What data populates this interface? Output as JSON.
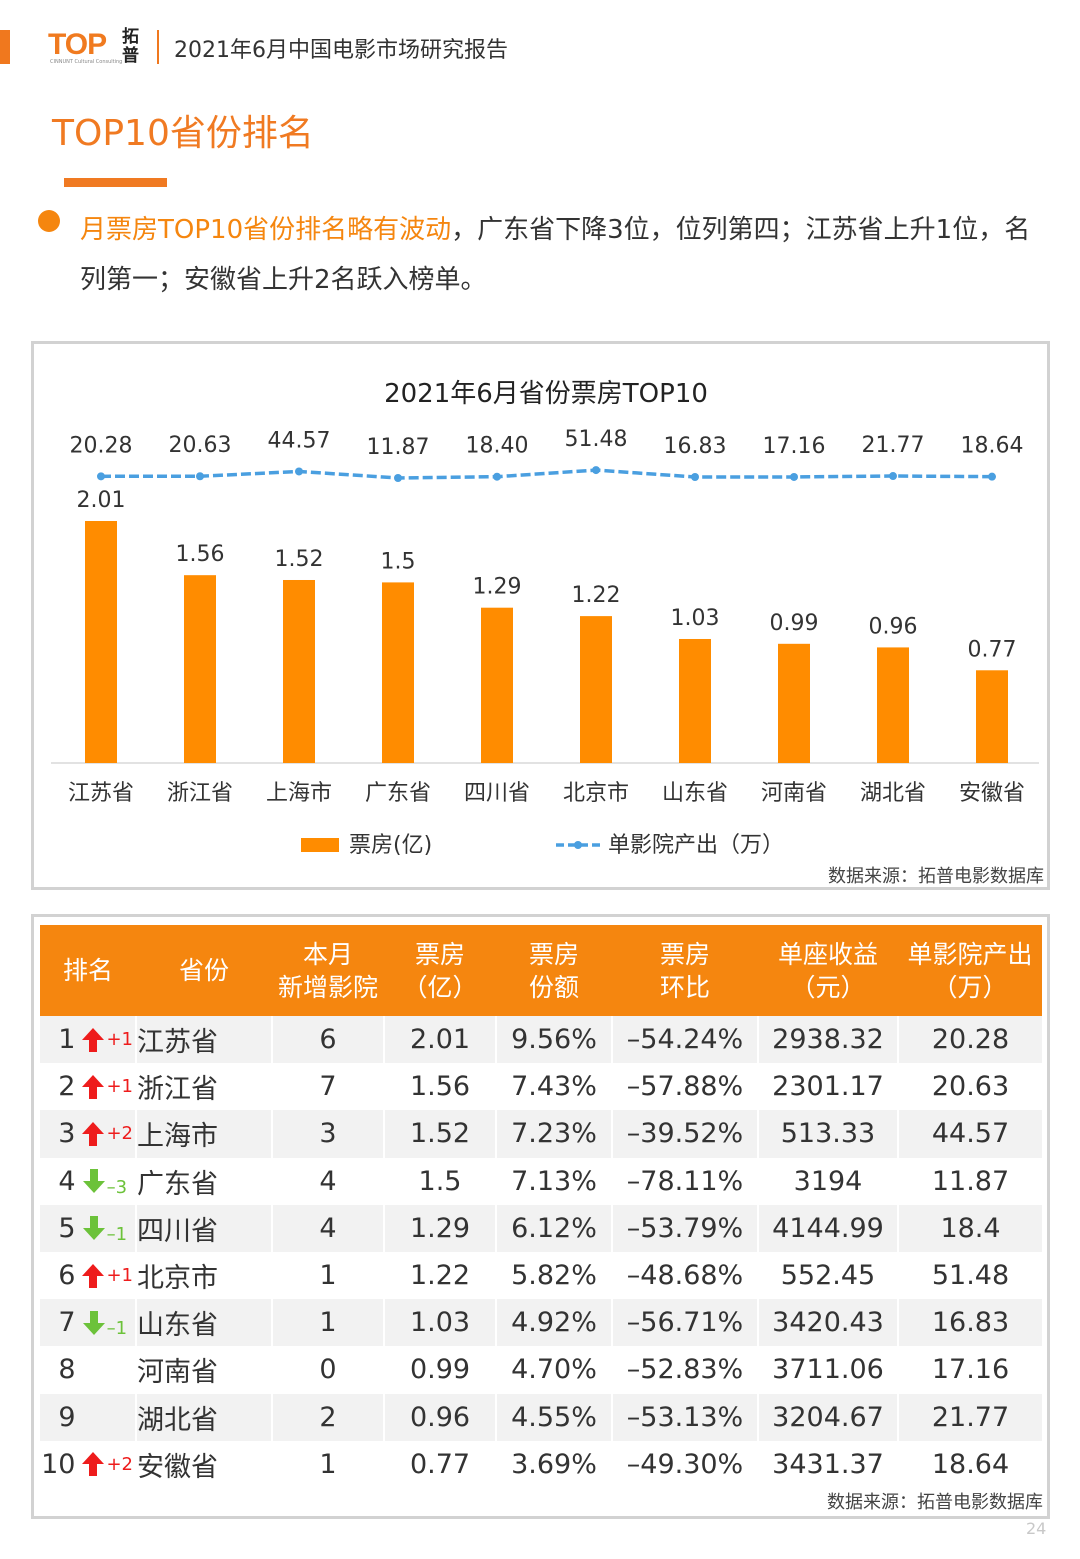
{
  "header": {
    "logo_text": "TOP",
    "logo_sub": "CINNUNT  Cultural Consulting",
    "logo_cn": "拓普",
    "report_title": "2021年6月中国电影市场研究报告"
  },
  "section": {
    "title": "TOP10省份排名",
    "summary_highlight": "月票房TOP10省份排名略有波动",
    "summary_rest": "，广东省下降3位，位列第四；江苏省上升1位，名列第一；安徽省上升2名跃入榜单。"
  },
  "chart_data": {
    "type": "bar",
    "title": "2021年6月省份票房TOP10",
    "categories": [
      "江苏省",
      "浙江省",
      "上海市",
      "广东省",
      "四川省",
      "北京市",
      "山东省",
      "河南省",
      "湖北省",
      "安徽省"
    ],
    "series": [
      {
        "name": "票房(亿)",
        "type": "bar",
        "color": "#ff8c00",
        "values": [
          2.01,
          1.56,
          1.52,
          1.5,
          1.29,
          1.22,
          1.03,
          0.99,
          0.96,
          0.77
        ],
        "labels": [
          "2.01",
          "1.56",
          "1.52",
          "1.5",
          "1.29",
          "1.22",
          "1.03",
          "0.99",
          "0.96",
          "0.77"
        ]
      },
      {
        "name": "单影院产出（万）",
        "type": "line",
        "style": "dashed",
        "color": "#4a9fe0",
        "values": [
          20.28,
          20.63,
          44.57,
          11.87,
          18.4,
          51.48,
          16.83,
          17.16,
          21.77,
          18.64
        ],
        "labels": [
          "20.28",
          "20.63",
          "44.57",
          "11.87",
          "18.40",
          "51.48",
          "16.83",
          "17.16",
          "21.77",
          "18.64"
        ]
      }
    ],
    "legend_position": "bottom",
    "grid": false,
    "source": "数据来源：拓普电影数据库"
  },
  "table": {
    "headers": [
      [
        "排名"
      ],
      [
        "省份"
      ],
      [
        "本月",
        "新增影院"
      ],
      [
        "票房",
        "（亿）"
      ],
      [
        "票房",
        "份额"
      ],
      [
        "票房",
        "环比"
      ],
      [
        "单座收益",
        "（元）"
      ],
      [
        "单影院产出",
        "（万）"
      ]
    ],
    "rows": [
      {
        "rank": "1",
        "dir": "up",
        "change": "+1",
        "province": "江苏省",
        "new_cinemas": "6",
        "box_office": "2.01",
        "share": "9.56%",
        "mom": "–54.24%",
        "per_seat": "2938.32",
        "per_cinema": "20.28"
      },
      {
        "rank": "2",
        "dir": "up",
        "change": "+1",
        "province": "浙江省",
        "new_cinemas": "7",
        "box_office": "1.56",
        "share": "7.43%",
        "mom": "–57.88%",
        "per_seat": "2301.17",
        "per_cinema": "20.63"
      },
      {
        "rank": "3",
        "dir": "up",
        "change": "+2",
        "province": "上海市",
        "new_cinemas": "3",
        "box_office": "1.52",
        "share": "7.23%",
        "mom": "–39.52%",
        "per_seat": "513.33",
        "per_cinema": "44.57"
      },
      {
        "rank": "4",
        "dir": "down",
        "change": "–3",
        "province": "广东省",
        "new_cinemas": "4",
        "box_office": "1.5",
        "share": "7.13%",
        "mom": "–78.11%",
        "per_seat": "3194",
        "per_cinema": "11.87"
      },
      {
        "rank": "5",
        "dir": "down",
        "change": "–1",
        "province": "四川省",
        "new_cinemas": "4",
        "box_office": "1.29",
        "share": "6.12%",
        "mom": "–53.79%",
        "per_seat": "4144.99",
        "per_cinema": "18.4"
      },
      {
        "rank": "6",
        "dir": "up",
        "change": "+1",
        "province": "北京市",
        "new_cinemas": "1",
        "box_office": "1.22",
        "share": "5.82%",
        "mom": "–48.68%",
        "per_seat": "552.45",
        "per_cinema": "51.48"
      },
      {
        "rank": "7",
        "dir": "down",
        "change": "–1",
        "province": "山东省",
        "new_cinemas": "1",
        "box_office": "1.03",
        "share": "4.92%",
        "mom": "–56.71%",
        "per_seat": "3420.43",
        "per_cinema": "16.83"
      },
      {
        "rank": "8",
        "dir": "",
        "change": "",
        "province": "河南省",
        "new_cinemas": "0",
        "box_office": "0.99",
        "share": "4.70%",
        "mom": "–52.83%",
        "per_seat": "3711.06",
        "per_cinema": "17.16"
      },
      {
        "rank": "9",
        "dir": "",
        "change": "",
        "province": "湖北省",
        "new_cinemas": "2",
        "box_office": "0.96",
        "share": "4.55%",
        "mom": "–53.13%",
        "per_seat": "3204.67",
        "per_cinema": "21.77"
      },
      {
        "rank": "10",
        "dir": "up",
        "change": "+2",
        "province": "安徽省",
        "new_cinemas": "1",
        "box_office": "0.77",
        "share": "3.69%",
        "mom": "–49.30%",
        "per_seat": "3431.37",
        "per_cinema": "18.64"
      }
    ],
    "source": "数据来源：拓普电影数据库"
  },
  "footer": {
    "page_number": "24"
  },
  "colors": {
    "accent": "#f07a22",
    "bar": "#ff8c00",
    "line": "#4a9fe0",
    "up": "#ee1c1c",
    "down": "#6cc23a"
  }
}
